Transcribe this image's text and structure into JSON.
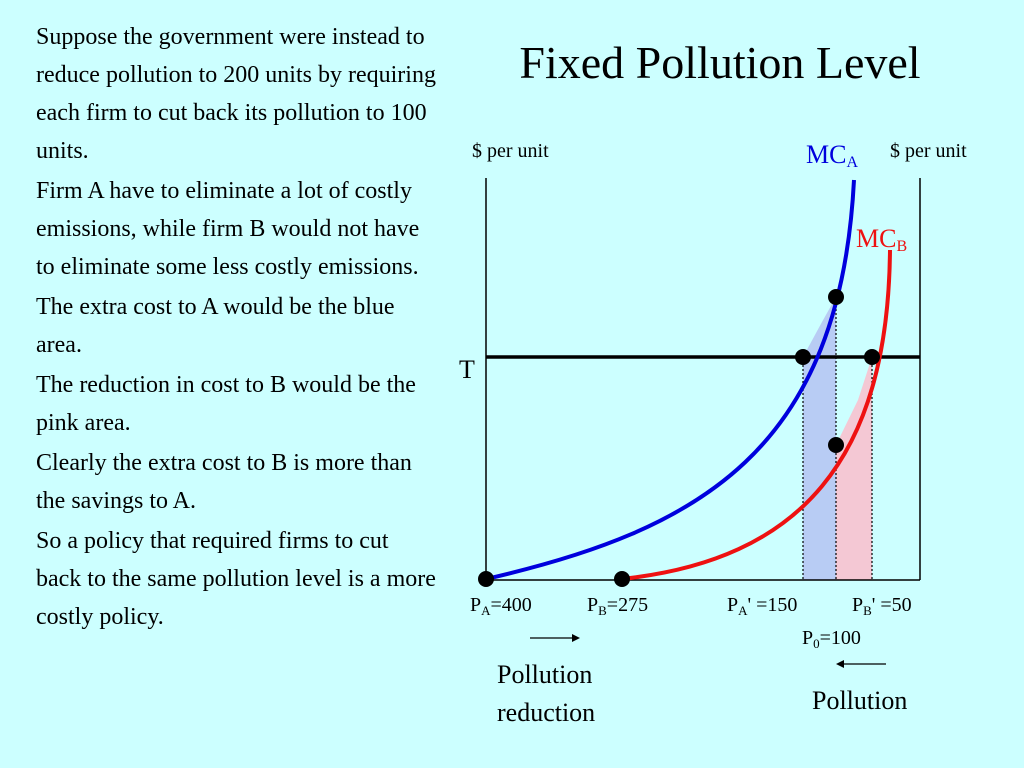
{
  "title": "Fixed Pollution Level",
  "paragraphs": [
    "Suppose the government were instead to reduce pollution to 200 units by requiring each firm to cut back its pollution to 100 units.",
    "Firm A have to eliminate a lot of costly emissions, while firm B would not have to eliminate some less costly emissions.",
    "The extra cost to A would be the blue area.",
    "The reduction in cost to B would be the pink area.",
    "Clearly the extra cost to B is more than the savings to A.",
    "So a policy that required firms to cut back to the same pollution level is a more costly policy."
  ],
  "diagram": {
    "left_axis_label": "$ per unit",
    "right_axis_label": "$ per unit",
    "mca_label": {
      "main": "MC",
      "sub": "A"
    },
    "mcb_label": {
      "main": "MC",
      "sub": "B"
    },
    "tax_label": "T",
    "pa": {
      "main": "P",
      "sub": "A",
      "rest": "=400"
    },
    "pb": {
      "main": "P",
      "sub": "B",
      "rest": "=275"
    },
    "pa_prime": {
      "main": "P",
      "sub": "A",
      "rest": "' =150"
    },
    "pb_prime": {
      "main": "P",
      "sub": "B",
      "rest": "' =50"
    },
    "p0": {
      "main": "P",
      "sub": "0",
      "rest": "=100"
    },
    "pollution_reduction_label": "Pollution reduction",
    "pollution_label": "Pollution",
    "colors": {
      "background": "#ccffff",
      "mc_a": "#0000dd",
      "mc_b": "#ee1111",
      "blue_area": "#b8ccf4",
      "pink_area": "#f4c8d4",
      "axis": "#000000"
    }
  }
}
